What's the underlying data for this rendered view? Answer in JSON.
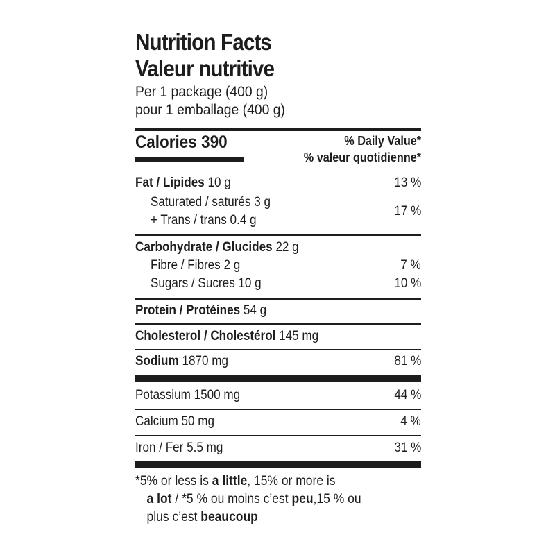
{
  "header": {
    "title_en": "Nutrition Facts",
    "title_fr": "Valeur nutritive",
    "serving_en": "Per 1 package (400 g)",
    "serving_fr": "pour 1 emballage (400 g)"
  },
  "calories": {
    "label": "Calories",
    "value": "390"
  },
  "dv_header": {
    "en": "% Daily Value",
    "fr": "% valeur quotidienne",
    "star": "*"
  },
  "nutrients": {
    "fat": {
      "label": "Fat / Lipides",
      "amount": "10 g",
      "dv": "13 %"
    },
    "saturated": {
      "label": "Saturated / saturés",
      "amount": "3 g"
    },
    "trans": {
      "label": "+ Trans / trans",
      "amount": "0.4 g"
    },
    "sat_trans_dv": "17 %",
    "carbohydrate": {
      "label": "Carbohydrate / Glucides",
      "amount": "22 g"
    },
    "fibre": {
      "label": "Fibre / Fibres",
      "amount": "2 g",
      "dv": "7 %"
    },
    "sugars": {
      "label": "Sugars / Sucres",
      "amount": "10 g",
      "dv": "10 %"
    },
    "protein": {
      "label": "Protein / Protéines",
      "amount": "54 g"
    },
    "cholesterol": {
      "label": "Cholesterol / Cholestérol",
      "amount": "145 mg"
    },
    "sodium": {
      "label": "Sodium",
      "amount": "1870 mg",
      "dv": "81 %"
    },
    "potassium": {
      "label": "Potassium",
      "amount": "1500 mg",
      "dv": "44 %"
    },
    "calcium": {
      "label": "Calcium",
      "amount": "50 mg",
      "dv": "4 %"
    },
    "iron": {
      "label": "Iron / Fer",
      "amount": "5.5 mg",
      "dv": "31 %"
    }
  },
  "footnote": {
    "star": "*",
    "p1": "5% or less is ",
    "b1": "a little",
    "p2": ", 15% or more is",
    "b2": "a lot",
    "p3": " / ",
    "p4": "5 % ou moins c’est ",
    "b3": "peu",
    "p5": ",15 % ou",
    "p6": "plus c’est ",
    "b4": "beaucoup"
  }
}
